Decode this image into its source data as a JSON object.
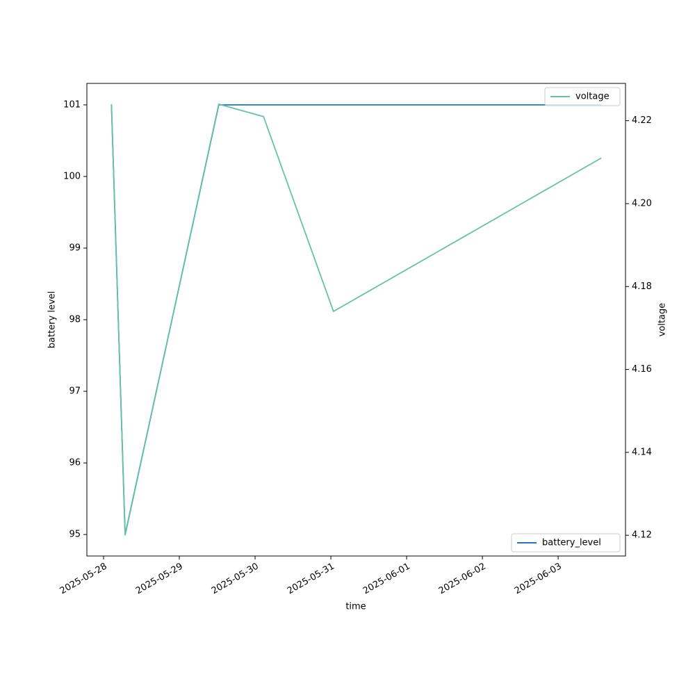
{
  "chart_data": {
    "type": "line",
    "x_label": "time",
    "y_label": "battery level",
    "y2_label": "voltage",
    "x": [
      "2025-05-28T02:30",
      "2025-05-28T06:50",
      "2025-05-29T12:30",
      "2025-05-30T02:40",
      "2025-05-31T00:50",
      "2025-06-03T13:40"
    ],
    "series": [
      {
        "name": "battery_level",
        "color": "#1f77b4",
        "axis": "y",
        "legend": "lower right",
        "values": [
          101,
          95,
          101,
          101,
          101,
          101
        ]
      },
      {
        "name": "voltage",
        "color": "#66c2a5",
        "axis": "y2",
        "legend": "upper right",
        "values": [
          4.224,
          4.12,
          4.224,
          4.221,
          4.174,
          4.211
        ]
      }
    ],
    "xlim": [
      "2025-05-27T18:43",
      "2025-06-03T21:20"
    ],
    "xticks": [
      "2025-05-28",
      "2025-05-29",
      "2025-05-30",
      "2025-05-31",
      "2025-06-01",
      "2025-06-02",
      "2025-06-03"
    ],
    "ylim": [
      94.7,
      101.3
    ],
    "yticks": [
      95,
      96,
      97,
      98,
      99,
      100,
      101
    ],
    "y2lim": [
      4.115,
      4.229
    ],
    "y2ticks": [
      4.12,
      4.14,
      4.16,
      4.18,
      {
        "value": 4.2,
        "label": "4.20"
      },
      4.22
    ],
    "grid": false
  }
}
